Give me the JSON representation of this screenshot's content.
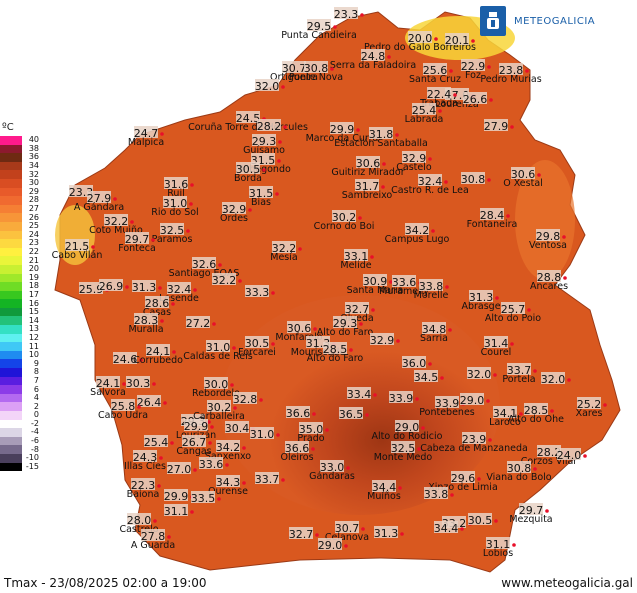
{
  "brand": {
    "name": "METEOGALICIA",
    "logo_icon": "galicia-shield-icon"
  },
  "legend": {
    "title": "ºC",
    "items": [
      {
        "value": "40",
        "color": "#ff1a8c"
      },
      {
        "value": "38",
        "color": "#8c1a2e"
      },
      {
        "value": "36",
        "color": "#6e2a12"
      },
      {
        "value": "34",
        "color": "#a83a1a"
      },
      {
        "value": "32",
        "color": "#c2411c"
      },
      {
        "value": "30",
        "color": "#d94d22"
      },
      {
        "value": "29",
        "color": "#e85a2a"
      },
      {
        "value": "28",
        "color": "#f06a30"
      },
      {
        "value": "27",
        "color": "#f57f34"
      },
      {
        "value": "26",
        "color": "#f79538"
      },
      {
        "value": "25",
        "color": "#f9ab3c"
      },
      {
        "value": "24",
        "color": "#fbc23f"
      },
      {
        "value": "23",
        "color": "#fdd940"
      },
      {
        "value": "22",
        "color": "#fff03f"
      },
      {
        "value": "21",
        "color": "#e9f53a"
      },
      {
        "value": "20",
        "color": "#c8f032"
      },
      {
        "value": "19",
        "color": "#9fe82a"
      },
      {
        "value": "18",
        "color": "#6fdc25"
      },
      {
        "value": "17",
        "color": "#38c81f"
      },
      {
        "value": "16",
        "color": "#14b424"
      },
      {
        "value": "15",
        "color": "#109a3c"
      },
      {
        "value": "14",
        "color": "#23c27a"
      },
      {
        "value": "13",
        "color": "#34e0c4"
      },
      {
        "value": "12",
        "color": "#5ef0f0"
      },
      {
        "value": "11",
        "color": "#3fc8f5"
      },
      {
        "value": "10",
        "color": "#1f8cf0"
      },
      {
        "value": "9",
        "color": "#1444e8"
      },
      {
        "value": "8",
        "color": "#1f14d8"
      },
      {
        "value": "7",
        "color": "#5a1ee0"
      },
      {
        "value": "6",
        "color": "#8c3ce8"
      },
      {
        "value": "4",
        "color": "#b46af0"
      },
      {
        "value": "2",
        "color": "#dca0f5"
      },
      {
        "value": "0",
        "color": "#f3d5f8"
      },
      {
        "value": "-2",
        "color": "#ffffff"
      },
      {
        "value": "-4",
        "color": "#dcd6e6"
      },
      {
        "value": "-6",
        "color": "#a89cb8"
      },
      {
        "value": "-8",
        "color": "#776a8c"
      },
      {
        "value": "-10",
        "color": "#4a3f5c"
      },
      {
        "value": "-15",
        "color": "#000000"
      }
    ]
  },
  "stations": [
    {
      "name": "Punta Candieira",
      "value": "29.5"
    },
    {
      "name": "",
      "value": "23.3"
    },
    {
      "name": "Pedro do Galo Borreiros",
      "value": "20.0"
    },
    {
      "name": "",
      "value": "20.1"
    },
    {
      "name": "Serra da Faladoira",
      "value": "24.8"
    },
    {
      "name": "Ortigueira",
      "value": "30.7"
    },
    {
      "name": "Ponte Nova",
      "value": "30.8"
    },
    {
      "name": "Santa Cruz",
      "value": "25.6"
    },
    {
      "name": "Foz",
      "value": "22.9"
    },
    {
      "name": "Pedro Murias",
      "value": "23.8"
    },
    {
      "name": "",
      "value": "32.0"
    },
    {
      "name": "Lourenzá",
      "value": "27.0"
    },
    {
      "name": "Trabada",
      "value": "22.4"
    },
    {
      "name": "",
      "value": "26.6"
    },
    {
      "name": "Labrada",
      "value": "25.4"
    },
    {
      "name": "Coruña Torre de Hércules",
      "value": "24.5"
    },
    {
      "name": "Malpica",
      "value": "24.7"
    },
    {
      "name": "",
      "value": "28.2"
    },
    {
      "name": "Marco da Curra",
      "value": "29.9"
    },
    {
      "name": "Estación Santaballa",
      "value": "31.8"
    },
    {
      "name": "",
      "value": "27.9"
    },
    {
      "name": "Guísamo",
      "value": "29.3"
    },
    {
      "name": "Mabegondo",
      "value": "31.5"
    },
    {
      "name": "Borda",
      "value": "30.5"
    },
    {
      "name": "Guitiriz Mirador",
      "value": "30.6"
    },
    {
      "name": "Castelo",
      "value": "32.9"
    },
    {
      "name": "O Xestal",
      "value": "30.6"
    },
    {
      "name": "Sambreixo",
      "value": "31.7"
    },
    {
      "name": "Castro R. de Lea",
      "value": "32.4"
    },
    {
      "name": "",
      "value": "30.8"
    },
    {
      "name": "Ruil",
      "value": "31.6"
    },
    {
      "name": "Rio do Sol",
      "value": "31.0"
    },
    {
      "name": "Bias",
      "value": "31.5"
    },
    {
      "name": "",
      "value": "23.3"
    },
    {
      "name": "A Gándara",
      "value": "27.9"
    },
    {
      "name": "Coto Muiño",
      "value": "32.2"
    },
    {
      "name": "Paramos",
      "value": "32.5"
    },
    {
      "name": "Fonteca",
      "value": "29.7"
    },
    {
      "name": "Órdes",
      "value": "32.9"
    },
    {
      "name": "Corno do Boi",
      "value": "30.2"
    },
    {
      "name": "Campus Lugo",
      "value": "34.2"
    },
    {
      "name": "Fontaneira",
      "value": "28.4"
    },
    {
      "name": "Ventosa",
      "value": "29.8"
    },
    {
      "name": "Cabo Vilán",
      "value": "21.5"
    },
    {
      "name": "Mesía",
      "value": "32.2"
    },
    {
      "name": "Melide",
      "value": "33.1"
    },
    {
      "name": "Ancares",
      "value": "28.8"
    },
    {
      "name": "Santiago EOAS",
      "value": "32.6"
    },
    {
      "name": "",
      "value": "32.2"
    },
    {
      "name": "",
      "value": "25.9"
    },
    {
      "name": "",
      "value": "26.9"
    },
    {
      "name": "",
      "value": "31.3"
    },
    {
      "name": "Lesende",
      "value": "32.4"
    },
    {
      "name": "Casas",
      "value": "28.6"
    },
    {
      "name": "",
      "value": "33.3"
    },
    {
      "name": "Santa María",
      "value": "30.9"
    },
    {
      "name": "Muramelly",
      "value": "33.6"
    },
    {
      "name": "Morelle",
      "value": "33.8"
    },
    {
      "name": "Abrasge",
      "value": "31.3"
    },
    {
      "name": "Alto do Poio",
      "value": "25.7"
    },
    {
      "name": "Muralla",
      "value": "28.3"
    },
    {
      "name": "",
      "value": "27.2"
    },
    {
      "name": "Olveda",
      "value": "32.7"
    },
    {
      "name": "Alto do Faro",
      "value": "29.3"
    },
    {
      "name": "Monfarelo",
      "value": "30.6"
    },
    {
      "name": "Sarria",
      "value": "34.8"
    },
    {
      "name": "Courel",
      "value": "31.4"
    },
    {
      "name": "Caldas de Reis",
      "value": "31.0"
    },
    {
      "name": "",
      "value": "24.6"
    },
    {
      "name": "Corrubedo",
      "value": "24.1"
    },
    {
      "name": "Forcarei",
      "value": "30.5"
    },
    {
      "name": "Mouriscade",
      "value": "31.3"
    },
    {
      "name": "Alto do Faro",
      "value": "28.5"
    },
    {
      "name": "",
      "value": "32.9"
    },
    {
      "name": "",
      "value": "36.0"
    },
    {
      "name": "",
      "value": "34.5"
    },
    {
      "name": "",
      "value": "32.0"
    },
    {
      "name": "",
      "value": "32.0"
    },
    {
      "name": "Salvora",
      "value": "24.1"
    },
    {
      "name": "",
      "value": "30.3"
    },
    {
      "name": "Rebordelo",
      "value": "30.0"
    },
    {
      "name": "",
      "value": "33.4"
    },
    {
      "name": "",
      "value": "33.9"
    },
    {
      "name": "Pontebenes",
      "value": "33.9"
    },
    {
      "name": "",
      "value": "29.0"
    },
    {
      "name": "Portela",
      "value": "33.7"
    },
    {
      "name": "Xares",
      "value": "25.2"
    },
    {
      "name": "",
      "value": "26.4"
    },
    {
      "name": "",
      "value": "29.3"
    },
    {
      "name": "Carballeira",
      "value": "30.2"
    },
    {
      "name": "",
      "value": "32.8"
    },
    {
      "name": "",
      "value": "36.6"
    },
    {
      "name": "Prado",
      "value": "35.0"
    },
    {
      "name": "",
      "value": "36.5"
    },
    {
      "name": "Alto do Rodicio",
      "value": "29.0"
    },
    {
      "name": "Laroco",
      "value": "34.1"
    },
    {
      "name": "Alto do Ohe",
      "value": "28.5"
    },
    {
      "name": "Cabo Udra",
      "value": "25.8"
    },
    {
      "name": "Lourizán",
      "value": "29.9"
    },
    {
      "name": "",
      "value": "30.4"
    },
    {
      "name": "",
      "value": "31.0"
    },
    {
      "name": "",
      "value": "25.4"
    },
    {
      "name": "Cangas",
      "value": "26.7"
    },
    {
      "name": "Sanxenxo",
      "value": "34.2"
    },
    {
      "name": "Oleiros",
      "value": "36.6"
    },
    {
      "name": "Monte Medo",
      "value": "32.5"
    },
    {
      "name": "Cabeza de Manzaneda",
      "value": "23.9"
    },
    {
      "name": "Corzos Vilar",
      "value": "28.2"
    },
    {
      "name": "",
      "value": "24.0"
    },
    {
      "name": "Illas Cíes",
      "value": "24.3"
    },
    {
      "name": "",
      "value": "27.0"
    },
    {
      "name": "Gándaras",
      "value": "33.0"
    },
    {
      "name": "",
      "value": "33.6"
    },
    {
      "name": "Viana do Bolo",
      "value": "30.8"
    },
    {
      "name": "",
      "value": "33.7"
    },
    {
      "name": "Ourense",
      "value": "34.3"
    },
    {
      "name": "Xinzo de Limia",
      "value": "29.6"
    },
    {
      "name": "Baiona",
      "value": "22.3"
    },
    {
      "name": "",
      "value": "29.9"
    },
    {
      "name": "",
      "value": "33.5"
    },
    {
      "name": "Muíños",
      "value": "34.4"
    },
    {
      "name": "",
      "value": "33.8"
    },
    {
      "name": "",
      "value": "31.1"
    },
    {
      "name": "Mezquita",
      "value": "29.7"
    },
    {
      "name": "Castrelo",
      "value": "28.0"
    },
    {
      "name": "",
      "value": "33.2"
    },
    {
      "name": "",
      "value": "30.5"
    },
    {
      "name": "Celanova",
      "value": "30.7"
    },
    {
      "name": "",
      "value": "32.7"
    },
    {
      "name": "",
      "value": "31.3"
    },
    {
      "name": "",
      "value": "34.4"
    },
    {
      "name": "",
      "value": "29.0"
    },
    {
      "name": "A Guarda",
      "value": "27.8"
    },
    {
      "name": "Lobios",
      "value": "31.1"
    }
  ],
  "footer": {
    "caption": "Tmax - 23/08/2025 02:00 a 19:00",
    "url": "www.meteogalicia.gal"
  }
}
